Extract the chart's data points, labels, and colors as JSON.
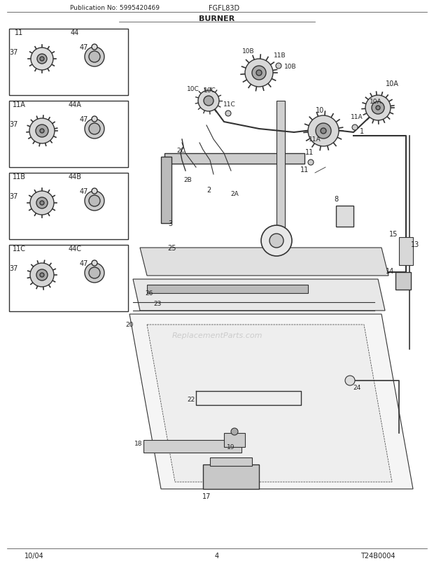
{
  "title": "BURNER",
  "pub_no": "Publication No: 5995420469",
  "model": "FGFL83D",
  "date": "10/04",
  "page": "4",
  "diagram_id": "T24B0004",
  "bg_color": "#ffffff",
  "line_color": "#333333",
  "box_color": "#e8e8e8",
  "text_color": "#222222",
  "watermark": "ReplacementParts.com"
}
